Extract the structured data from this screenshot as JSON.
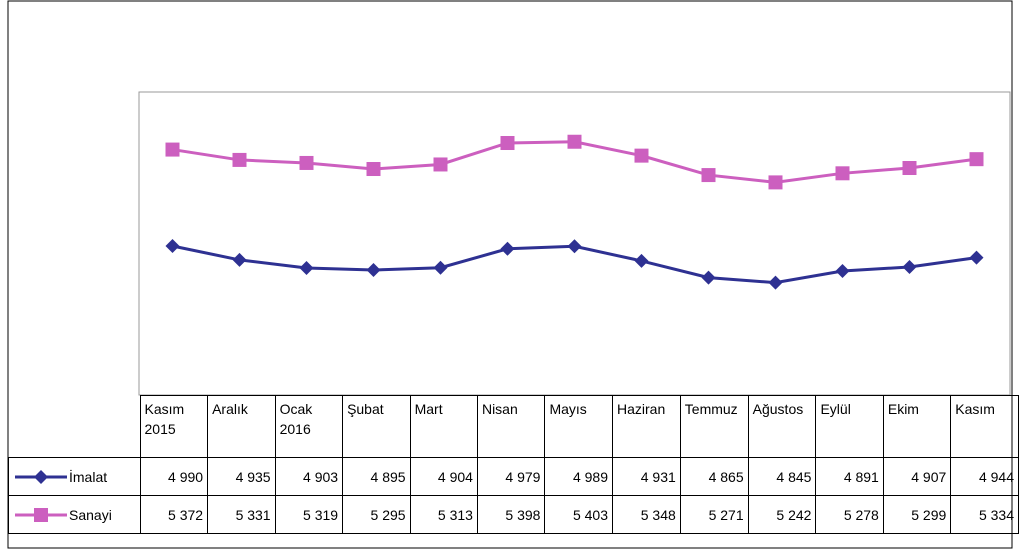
{
  "chart_data": {
    "type": "line",
    "categories": [
      "Kasım 2015",
      "Aralık",
      "Ocak 2016",
      "Şubat",
      "Mart",
      "Nisan",
      "Mayıs",
      "Haziran",
      "Temmuz",
      "Ağustos",
      "Eylül",
      "Ekim",
      "Kasım"
    ],
    "series": [
      {
        "name": "İmalat",
        "color": "#2e3192",
        "marker": "diamond",
        "values": [
          4990,
          4935,
          4903,
          4895,
          4904,
          4979,
          4989,
          4931,
          4865,
          4845,
          4891,
          4907,
          4944
        ],
        "value_labels": [
          "4 990",
          "4 935",
          "4 903",
          "4 895",
          "4 904",
          "4 979",
          "4 989",
          "4 931",
          "4 865",
          "4 845",
          "4 891",
          "4 907",
          "4 944"
        ]
      },
      {
        "name": "Sanayi",
        "color": "#cc5fbf",
        "marker": "square",
        "values": [
          5372,
          5331,
          5319,
          5295,
          5313,
          5398,
          5403,
          5348,
          5271,
          5242,
          5278,
          5299,
          5334
        ],
        "value_labels": [
          "5 372",
          "5 331",
          "5 319",
          "5 295",
          "5 313",
          "5 398",
          "5 403",
          "5 348",
          "5 271",
          "5 242",
          "5 278",
          "5 299",
          "5 334"
        ]
      }
    ],
    "ylim": [
      4400,
      5600
    ]
  }
}
